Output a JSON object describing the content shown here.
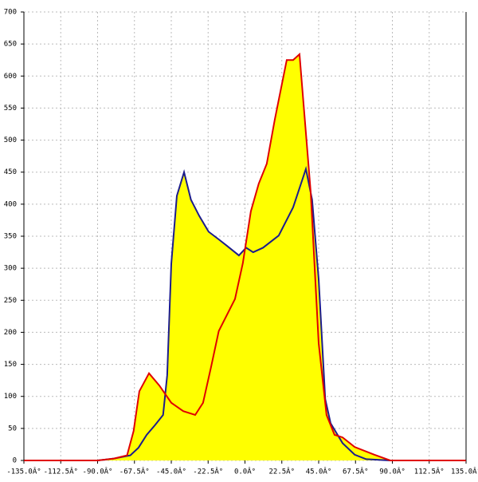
{
  "chart_data": {
    "type": "area",
    "fill": "#ffff00",
    "grid": true,
    "xlim": [
      -135,
      135
    ],
    "ylim": [
      0,
      700
    ],
    "xticks": [
      {
        "value": -135,
        "label": "-135.0Â°"
      },
      {
        "value": -112.5,
        "label": "-112.5Â°"
      },
      {
        "value": -90,
        "label": "-90.0Â°"
      },
      {
        "value": -67.5,
        "label": "-67.5Â°"
      },
      {
        "value": -45,
        "label": "-45.0Â°"
      },
      {
        "value": -22.5,
        "label": "-22.5Â°"
      },
      {
        "value": 0,
        "label": "0.0Â°"
      },
      {
        "value": 22.5,
        "label": "22.5Â°"
      },
      {
        "value": 45,
        "label": "45.0Â°"
      },
      {
        "value": 67.5,
        "label": "67.5Â°"
      },
      {
        "value": 90,
        "label": "90.0Â°"
      },
      {
        "value": 112.5,
        "label": "112.5Â°"
      },
      {
        "value": 135,
        "label": "135.0Â°"
      }
    ],
    "yticks": [
      0,
      50,
      100,
      150,
      200,
      250,
      300,
      350,
      400,
      450,
      500,
      550,
      600,
      650,
      700
    ],
    "series": [
      {
        "color": "#1c1c8c",
        "x": [
          -135,
          -90,
          -80,
          -70,
          -65,
          -60,
          -55,
          -50,
          -47.5,
          -45,
          -41.6,
          -37.2,
          -33,
          -28,
          -22.2,
          -16,
          -11,
          -3.7,
          0.7,
          5,
          11,
          20.6,
          29.4,
          37.2,
          41,
          45,
          49,
          52.3,
          59.6,
          67,
          74,
          88.7,
          135
        ],
        "values": [
          0,
          0,
          3,
          8,
          20,
          40,
          55,
          71,
          133,
          307,
          413,
          450,
          407,
          382,
          357,
          345,
          335,
          320,
          332,
          325,
          332,
          351,
          395,
          455,
          407,
          283,
          96,
          58,
          27,
          9,
          2,
          0,
          0
        ]
      },
      {
        "color": "#e00000",
        "x": [
          -135,
          -90,
          -80,
          -72,
          -68,
          -64.5,
          -58.6,
          -52.3,
          -45,
          -37.7,
          -30.4,
          -25.6,
          -20.7,
          -16,
          -6.1,
          -1.3,
          3.6,
          8.4,
          13.3,
          18.2,
          25.5,
          29.4,
          33.3,
          40.1,
          45,
          49.8,
          54.7,
          59.6,
          67,
          79,
          88.7,
          135
        ],
        "values": [
          0,
          0,
          3,
          8,
          46,
          108,
          136,
          117,
          90,
          77,
          71,
          90,
          146,
          202,
          252,
          308,
          389,
          432,
          463,
          532,
          625,
          625,
          634,
          420,
          183,
          71,
          40,
          36,
          21,
          9,
          0,
          0
        ]
      }
    ]
  }
}
